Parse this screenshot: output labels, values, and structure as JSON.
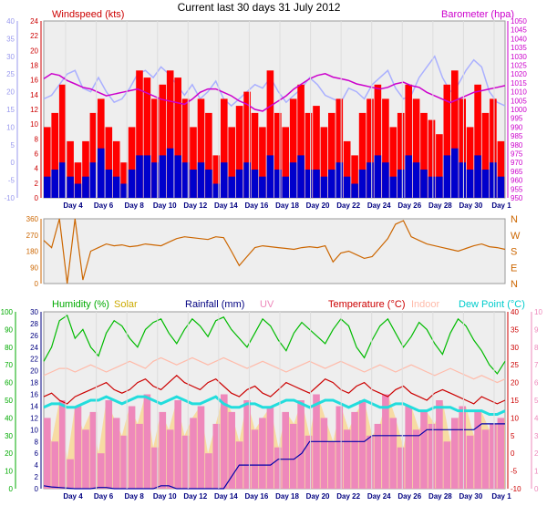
{
  "chart_data": {
    "title": "Current last 30 days 31 July 2012",
    "days": [
      "Day 4",
      "Day 6",
      "Day 8",
      "Day 10",
      "Day 12",
      "Day 14",
      "Day 16",
      "Day 18",
      "Day 20",
      "Day 22",
      "Day 24",
      "Day 26",
      "Day 28",
      "Day 30",
      "Day 1"
    ],
    "panels": [
      {
        "type": "line",
        "name": "wind",
        "labels": {
          "wind": "Windspeed (kts)",
          "baro": "Barometer (hpa)"
        },
        "left_outer_ticks": [
          "40",
          "35",
          "30",
          "25",
          "20",
          "15",
          "10",
          "5",
          "0",
          "-5",
          "-10"
        ],
        "left_inner_ticks": [
          "24",
          "22",
          "20",
          "18",
          "16",
          "14",
          "12",
          "10",
          "8",
          "6",
          "4",
          "2",
          "0"
        ],
        "right_ticks": [
          "1050",
          "1045",
          "1040",
          "1035",
          "1030",
          "1025",
          "1020",
          "1015",
          "1010",
          "1005",
          "1000",
          "995",
          "990",
          "985",
          "980",
          "975",
          "970",
          "965",
          "960",
          "955",
          "950"
        ],
        "ylim_wind": [
          0,
          25
        ],
        "ylim_baro": [
          948,
          1052
        ],
        "series": {
          "gust": [
            10,
            12,
            16,
            8,
            5,
            8,
            12,
            14,
            10,
            8,
            5,
            10,
            18,
            17,
            14,
            16,
            18,
            17,
            14,
            10,
            14,
            12,
            6,
            14,
            10,
            13,
            15,
            12,
            10,
            18,
            12,
            10,
            14,
            16,
            12,
            13,
            10,
            12,
            14,
            8,
            6,
            12,
            14,
            16,
            14,
            10,
            12,
            16,
            14,
            12,
            11,
            9,
            16,
            18,
            14,
            10,
            16,
            12,
            14,
            8
          ],
          "avg": [
            3,
            4,
            5,
            3,
            2,
            3,
            5,
            7,
            4,
            3,
            2,
            4,
            6,
            6,
            5,
            6,
            7,
            6,
            5,
            4,
            5,
            4,
            2,
            5,
            3,
            4,
            5,
            4,
            3,
            6,
            4,
            3,
            5,
            6,
            4,
            4,
            3,
            4,
            5,
            3,
            2,
            4,
            5,
            6,
            5,
            3,
            4,
            6,
            5,
            4,
            3,
            3,
            6,
            7,
            5,
            4,
            6,
            4,
            5,
            3
          ],
          "baro": [
            1018,
            1021,
            1020,
            1017,
            1015,
            1013,
            1012,
            1010,
            1008,
            1009,
            1010,
            1011,
            1012,
            1010,
            1008,
            1006,
            1005,
            1004,
            1003,
            1006,
            1010,
            1012,
            1012,
            1010,
            1008,
            1005,
            1003,
            1000,
            999,
            1002,
            1005,
            1008,
            1012,
            1015,
            1018,
            1020,
            1021,
            1019,
            1018,
            1017,
            1015,
            1014,
            1013,
            1012,
            1013,
            1015,
            1016,
            1014,
            1013,
            1010,
            1008,
            1006,
            1004,
            1006,
            1008,
            1010,
            1011,
            1012,
            1013,
            1014
          ],
          "gust_scaled": [
            18,
            19,
            22,
            25,
            26,
            21,
            20,
            24,
            20,
            17,
            18,
            21,
            25,
            26,
            24,
            27,
            25,
            22,
            19,
            22,
            18,
            20,
            23,
            18,
            16,
            18,
            20,
            22,
            21,
            24,
            20,
            17,
            19,
            21,
            24,
            22,
            19,
            18,
            17,
            21,
            20,
            18,
            22,
            24,
            26,
            21,
            18,
            19,
            24,
            27,
            30,
            24,
            20,
            22,
            26,
            29,
            27,
            20,
            17,
            16
          ]
        }
      },
      {
        "type": "line",
        "name": "direction",
        "left_ticks": [
          "360",
          "270",
          "180",
          "90",
          "0"
        ],
        "right_ticks": [
          "N",
          "W",
          "S",
          "E",
          "N"
        ],
        "ylim": [
          0,
          360
        ],
        "series": {
          "direction": [
            240,
            200,
            360,
            0,
            360,
            20,
            180,
            200,
            220,
            210,
            215,
            205,
            210,
            220,
            215,
            210,
            230,
            250,
            260,
            255,
            250,
            245,
            260,
            255,
            180,
            100,
            150,
            200,
            210,
            205,
            200,
            195,
            190,
            200,
            205,
            200,
            210,
            120,
            170,
            180,
            160,
            140,
            150,
            200,
            250,
            330,
            350,
            260,
            240,
            220,
            210,
            200,
            190,
            180,
            195,
            210,
            220,
            205,
            200,
            190
          ]
        }
      },
      {
        "type": "area",
        "name": "weather",
        "labels": {
          "humidity": "Humidity (%)",
          "solar": "Solar",
          "rainfall": "Rainfall (mm)",
          "uv": "UV",
          "temperature": "Temperature (°C)",
          "indoor": "Indoor",
          "dew_point": "Dew Point (°C)"
        },
        "humidity_ticks": [
          "100",
          "90",
          "80",
          "70",
          "60",
          "50",
          "40",
          "30",
          "20",
          "10",
          "0"
        ],
        "rain_ticks": [
          "30",
          "28",
          "26",
          "24",
          "22",
          "20",
          "18",
          "16",
          "14",
          "12",
          "10",
          "8",
          "6",
          "4",
          "2",
          "0"
        ],
        "temp_ticks": [
          "40",
          "35",
          "30",
          "25",
          "20",
          "15",
          "10",
          "5",
          "0",
          "-5",
          "-10"
        ],
        "dew_ticks": [
          "10",
          "9",
          "8",
          "7",
          "6",
          "5",
          "4",
          "3",
          "2",
          "1",
          "0"
        ],
        "ylim_humidity": [
          0,
          100
        ],
        "ylim_temp": [
          -10,
          40
        ],
        "ylim_rain": [
          0,
          30
        ],
        "series": {
          "humidity": [
            72,
            80,
            95,
            98,
            85,
            90,
            80,
            75,
            88,
            95,
            92,
            85,
            80,
            90,
            94,
            96,
            88,
            82,
            90,
            96,
            92,
            86,
            95,
            97,
            90,
            85,
            80,
            88,
            96,
            92,
            84,
            78,
            88,
            94,
            90,
            86,
            82,
            90,
            96,
            92,
            80,
            74,
            84,
            92,
            96,
            88,
            80,
            86,
            94,
            90,
            82,
            76,
            88,
            96,
            92,
            84,
            78,
            70,
            65,
            72
          ],
          "indoor": [
            22,
            23,
            24,
            24,
            23,
            24,
            25,
            24,
            23,
            24,
            25,
            26,
            25,
            24,
            26,
            27,
            26,
            25,
            26,
            27,
            26,
            25,
            26,
            27,
            26,
            25,
            24,
            25,
            26,
            25,
            24,
            23,
            24,
            25,
            26,
            25,
            24,
            25,
            26,
            25,
            24,
            23,
            24,
            25,
            24,
            23,
            24,
            25,
            24,
            23,
            22,
            23,
            24,
            23,
            22,
            21,
            22,
            21,
            20,
            21
          ],
          "temperature": [
            16,
            17,
            15,
            14,
            16,
            17,
            18,
            19,
            20,
            18,
            17,
            18,
            20,
            21,
            19,
            18,
            20,
            22,
            20,
            19,
            18,
            20,
            21,
            19,
            17,
            16,
            18,
            19,
            17,
            16,
            18,
            20,
            19,
            18,
            17,
            19,
            21,
            20,
            18,
            17,
            19,
            20,
            18,
            17,
            16,
            18,
            19,
            17,
            16,
            15,
            17,
            18,
            17,
            16,
            15,
            14,
            16,
            15,
            14,
            15
          ],
          "dew_point": [
            13,
            14,
            14,
            13,
            13,
            14,
            15,
            15,
            16,
            15,
            14,
            15,
            16,
            16,
            15,
            14,
            15,
            16,
            15,
            14,
            14,
            15,
            16,
            14,
            13,
            13,
            14,
            14,
            13,
            13,
            14,
            15,
            15,
            14,
            13,
            14,
            15,
            15,
            14,
            13,
            14,
            15,
            14,
            13,
            13,
            14,
            14,
            13,
            12,
            12,
            13,
            13,
            13,
            12,
            12,
            12,
            12,
            11,
            11,
            12
          ],
          "rainfall": [
            0.5,
            0.3,
            0.2,
            0.1,
            0,
            0,
            0,
            0.2,
            0.2,
            0,
            0,
            0,
            0,
            0,
            0,
            0.5,
            0.5,
            0,
            0,
            0,
            0,
            0,
            0,
            0,
            2,
            4,
            4,
            4,
            4,
            4,
            5,
            5,
            5,
            6,
            8,
            8,
            8,
            8,
            8,
            8,
            8,
            8,
            9,
            9,
            9,
            9,
            9,
            9,
            9,
            10,
            10,
            10,
            10,
            10,
            10,
            10,
            11,
            11,
            11,
            11
          ],
          "solar": [
            12,
            8,
            15,
            5,
            14,
            10,
            13,
            6,
            15,
            12,
            9,
            14,
            11,
            16,
            7,
            13,
            10,
            15,
            9,
            12,
            14,
            6,
            11,
            16,
            13,
            8,
            15,
            10,
            12,
            14,
            7,
            13,
            11,
            15,
            9,
            16,
            12,
            8,
            14,
            10,
            13,
            15,
            9,
            11,
            16,
            12,
            7,
            14,
            10,
            13,
            11,
            15,
            8,
            12,
            14,
            9,
            13,
            10,
            11,
            12
          ]
        }
      }
    ]
  }
}
